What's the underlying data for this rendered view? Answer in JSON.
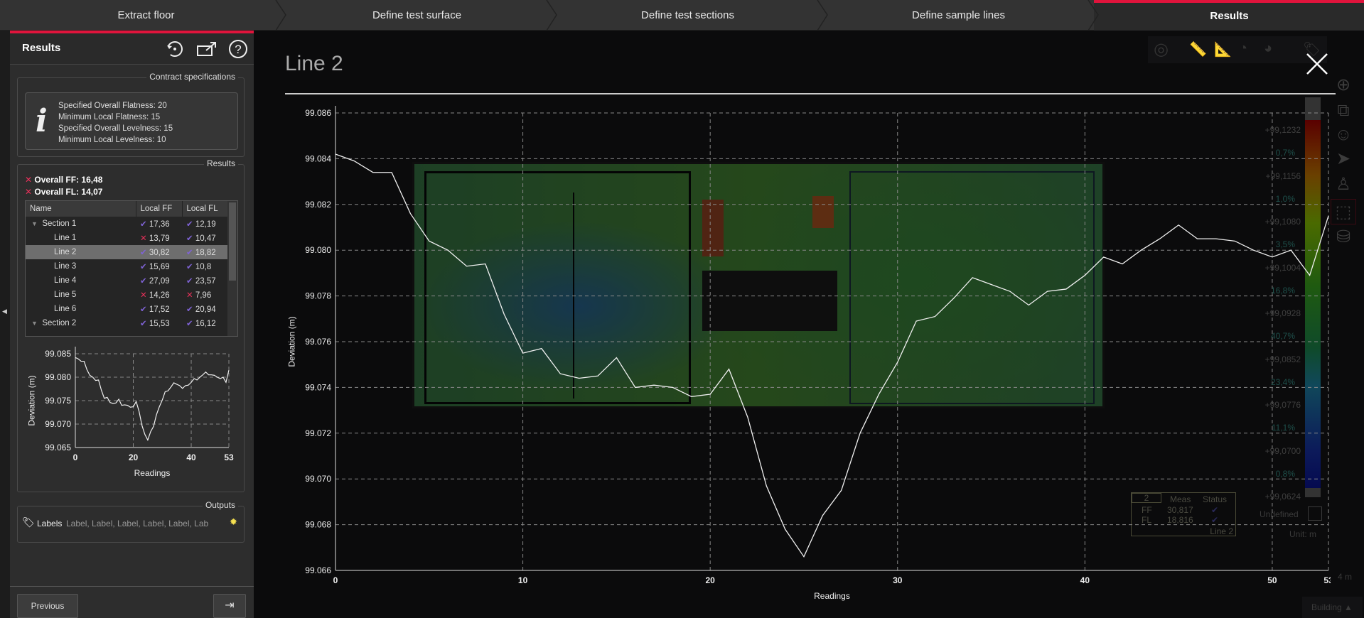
{
  "tabs": [
    {
      "label": "Extract floor"
    },
    {
      "label": "Define test surface"
    },
    {
      "label": "Define test sections"
    },
    {
      "label": "Define sample lines"
    },
    {
      "label": "Results"
    }
  ],
  "panel": {
    "title": "Results",
    "icons": [
      "reset-icon",
      "export-icon",
      "help-icon"
    ],
    "contract": {
      "legend": "Contract specifications",
      "lines": [
        "Specified Overall Flatness: 20",
        "Minimum Local Flatness: 15",
        "Specified Overall Levelness: 15",
        "Minimum Local Levelness: 10"
      ]
    },
    "results": {
      "legend": "Results",
      "overall_ff": "Overall FF: 16,48",
      "overall_fl": "Overall FL: 14,07",
      "columns": [
        "Name",
        "Local FF",
        "Local FL"
      ],
      "rows": [
        {
          "name": "Section 1",
          "group": true,
          "ff": "17,36",
          "ff_ok": true,
          "fl": "12,19",
          "fl_ok": true
        },
        {
          "name": "Line 1",
          "ff": "13,79",
          "ff_ok": false,
          "fl": "10,47",
          "fl_ok": true
        },
        {
          "name": "Line 2",
          "selected": true,
          "ff": "30,82",
          "ff_ok": true,
          "fl": "18,82",
          "fl_ok": true
        },
        {
          "name": "Line 3",
          "ff": "15,69",
          "ff_ok": true,
          "fl": "10,8",
          "fl_ok": true
        },
        {
          "name": "Line 4",
          "ff": "27,09",
          "ff_ok": true,
          "fl": "23,57",
          "fl_ok": true
        },
        {
          "name": "Line 5",
          "ff": "14,26",
          "ff_ok": false,
          "fl": "7,96",
          "fl_ok": false
        },
        {
          "name": "Line 6",
          "ff": "17,52",
          "ff_ok": true,
          "fl": "20,94",
          "fl_ok": true
        },
        {
          "name": "Section 2",
          "group": true,
          "ff": "15,53",
          "ff_ok": true,
          "fl": "16,12",
          "fl_ok": true
        }
      ]
    },
    "outputs": {
      "legend": "Outputs",
      "label": "Labels",
      "value": "Label, Label, Label, Label, Label, Lab"
    },
    "previous": "Previous"
  },
  "viewer": {
    "title": "Line 2",
    "colorbar_values": [
      "+99,1232",
      "+99,1156",
      "+99,1080",
      "+99,1004",
      "+99,0928",
      "+99,0852",
      "+99,0776",
      "+99,0700",
      "+99,0624"
    ],
    "colorbar_percents": [
      "0,7%",
      "1,0%",
      "3,5%",
      "16,8%",
      "40,7%",
      "23,4%",
      "11,1%",
      "0,8%"
    ],
    "undefined": "Undefined",
    "unit": "Unit: m",
    "scale": "4 m",
    "building": "Building",
    "measure": {
      "id": "2",
      "meas": "Meas",
      "status": "Status",
      "ff_label": "FF",
      "ff": "30,817",
      "fl_label": "FL",
      "fl": "18,816",
      "line": "Line 2"
    }
  },
  "colors": {
    "accent": "#e0143c",
    "ok": "#7f63d6",
    "fail": "#e8305a"
  },
  "chart_data": [
    {
      "type": "line",
      "xlabel": "Readings",
      "ylabel": "Deviation (m)",
      "xlim": [
        0,
        53
      ],
      "ylim": [
        99.066,
        99.086
      ],
      "xticks": [
        0,
        10,
        20,
        30,
        40,
        50,
        53
      ],
      "yticks": [
        "99.066",
        "99.068",
        "99.070",
        "99.072",
        "99.074",
        "99.076",
        "99.078",
        "99.080",
        "99.082",
        "99.084",
        "99.086"
      ],
      "grid": true,
      "x": [
        0,
        1,
        2,
        3,
        4,
        5,
        6,
        7,
        8,
        9,
        10,
        11,
        12,
        13,
        14,
        15,
        16,
        17,
        18,
        19,
        20,
        21,
        22,
        23,
        24,
        25,
        26,
        27,
        28,
        29,
        30,
        31,
        32,
        33,
        34,
        35,
        36,
        37,
        38,
        39,
        40,
        41,
        42,
        43,
        44,
        45,
        46,
        47,
        48,
        49,
        50,
        51,
        52,
        53
      ],
      "y": [
        99.0842,
        99.0839,
        99.0834,
        99.0834,
        99.0816,
        99.0804,
        99.08,
        99.0793,
        99.0794,
        99.0772,
        99.0755,
        99.0757,
        99.0746,
        99.0744,
        99.0745,
        99.0753,
        99.074,
        99.0741,
        99.074,
        99.0736,
        99.0737,
        99.0748,
        99.0727,
        99.0697,
        99.0678,
        99.0666,
        99.0684,
        99.0695,
        99.072,
        99.0737,
        99.0751,
        99.0769,
        99.0771,
        99.0779,
        99.0788,
        99.0785,
        99.0782,
        99.0776,
        99.0782,
        99.0783,
        99.0789,
        99.0797,
        99.0794,
        99.08,
        99.0805,
        99.0811,
        99.0805,
        99.0805,
        99.0804,
        99.08,
        99.0797,
        99.08,
        99.0789,
        99.0815
      ]
    },
    {
      "type": "line",
      "xlabel": "Readings",
      "ylabel": "Deviation (m)",
      "xlim": [
        0,
        53
      ],
      "ylim": [
        99.065,
        99.085
      ],
      "xticks": [
        0,
        20,
        40,
        53
      ],
      "yticks": [
        "99.065",
        "99.070",
        "99.075",
        "99.080",
        "99.085"
      ],
      "grid": true
    }
  ]
}
